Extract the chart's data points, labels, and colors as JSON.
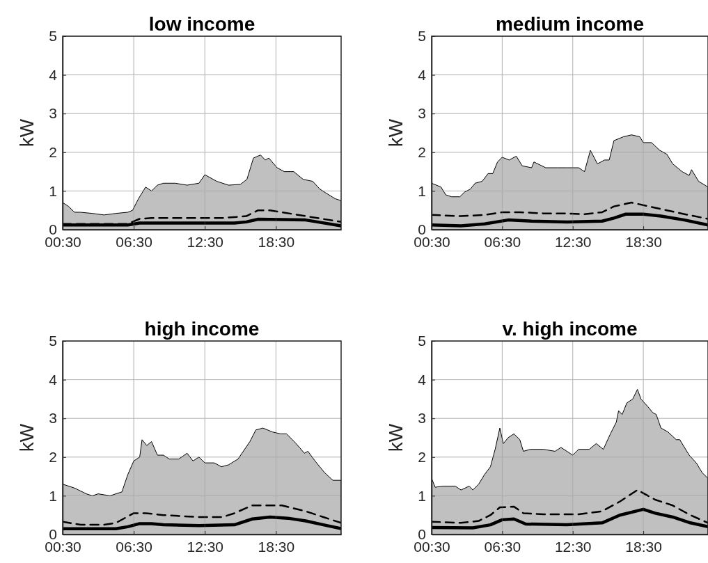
{
  "chart_data": [
    {
      "type": "area",
      "title": "low income",
      "ylabel": "kW",
      "xlim": [
        0.5,
        24
      ],
      "ylim": [
        0,
        5
      ],
      "yticks": [
        0,
        1,
        2,
        3,
        4,
        5
      ],
      "xticks": [
        {
          "value": 0.5,
          "label": "00:30"
        },
        {
          "value": 6.5,
          "label": "06:30"
        },
        {
          "value": 12.5,
          "label": "12:30"
        },
        {
          "value": 18.5,
          "label": "18:30"
        }
      ],
      "grid": true,
      "series": [
        {
          "color": "#c0c0c0",
          "x": [
            0.5,
            1,
            1.5,
            2,
            3,
            4,
            5,
            6,
            6.4,
            6.9,
            7.5,
            8,
            8.5,
            9,
            10,
            11,
            12,
            12.5,
            13.5,
            14.5,
            15.5,
            16.05,
            16.6,
            17.2,
            17.6,
            17.9,
            18.6,
            19.2,
            20,
            20.8,
            21.6,
            22.2,
            22.7,
            23.5,
            24
          ],
          "values": [
            0.7,
            0.6,
            0.45,
            0.45,
            0.42,
            0.38,
            0.42,
            0.45,
            0.5,
            0.8,
            1.1,
            1.0,
            1.15,
            1.2,
            1.2,
            1.15,
            1.2,
            1.42,
            1.25,
            1.15,
            1.17,
            1.3,
            1.85,
            1.93,
            1.8,
            1.85,
            1.6,
            1.5,
            1.5,
            1.3,
            1.25,
            1.05,
            0.95,
            0.8,
            0.75
          ]
        },
        {
          "type": "line",
          "color": "#000000",
          "line_style": "dashed",
          "x": [
            0.5,
            6,
            7,
            8,
            10,
            12,
            14,
            16,
            17,
            18,
            19,
            20,
            22,
            24
          ],
          "values": [
            0.15,
            0.15,
            0.28,
            0.3,
            0.3,
            0.3,
            0.3,
            0.35,
            0.5,
            0.5,
            0.45,
            0.4,
            0.3,
            0.2
          ]
        },
        {
          "type": "line",
          "color": "#000000",
          "line_style": "solid",
          "x": [
            0.5,
            6,
            7,
            10,
            15,
            16,
            17,
            19,
            21,
            22,
            24
          ],
          "values": [
            0.12,
            0.12,
            0.17,
            0.17,
            0.17,
            0.2,
            0.27,
            0.26,
            0.25,
            0.2,
            0.1
          ]
        }
      ]
    },
    {
      "type": "area",
      "title": "medium income",
      "ylabel": "kW",
      "xlim": [
        0.5,
        24
      ],
      "ylim": [
        0,
        5
      ],
      "yticks": [
        0,
        1,
        2,
        3,
        4,
        5
      ],
      "xticks": [
        {
          "value": 0.5,
          "label": "00:30"
        },
        {
          "value": 6.5,
          "label": "06:30"
        },
        {
          "value": 12.5,
          "label": "12:30"
        },
        {
          "value": 18.5,
          "label": "18:30"
        }
      ],
      "grid": true,
      "series": [
        {
          "color": "#c0c0c0",
          "x": [
            0.5,
            1.3,
            1.7,
            2.2,
            2.9,
            3.3,
            3.8,
            4.2,
            4.8,
            5.3,
            5.7,
            6.1,
            6.5,
            7.1,
            7.7,
            8.2,
            9.0,
            9.2,
            10.2,
            11.2,
            12.0,
            13.0,
            13.5,
            14.0,
            14.6,
            15.2,
            15.6,
            16.0,
            16.8,
            17.5,
            18.2,
            18.5,
            19.2,
            19.9,
            20.5,
            21.0,
            21.8,
            22.4,
            22.6,
            23.2,
            24
          ],
          "values": [
            1.2,
            1.1,
            0.9,
            0.85,
            0.85,
            0.97,
            1.05,
            1.2,
            1.25,
            1.45,
            1.45,
            1.75,
            1.87,
            1.8,
            1.9,
            1.65,
            1.6,
            1.75,
            1.6,
            1.6,
            1.6,
            1.6,
            1.5,
            2.05,
            1.7,
            1.8,
            1.8,
            2.3,
            2.4,
            2.45,
            2.4,
            2.25,
            2.25,
            2.05,
            1.95,
            1.7,
            1.5,
            1.4,
            1.55,
            1.25,
            1.1
          ]
        },
        {
          "type": "line",
          "color": "#000000",
          "line_style": "dashed",
          "x": [
            0.5,
            3,
            5,
            6.5,
            8,
            10,
            12,
            13.5,
            15,
            16,
            17.5,
            19,
            20.5,
            22,
            24
          ],
          "values": [
            0.38,
            0.35,
            0.38,
            0.45,
            0.45,
            0.42,
            0.42,
            0.4,
            0.45,
            0.6,
            0.7,
            0.6,
            0.5,
            0.4,
            0.28
          ]
        },
        {
          "type": "line",
          "color": "#000000",
          "line_style": "solid",
          "x": [
            0.5,
            3,
            5,
            7,
            9,
            12,
            15,
            16,
            17,
            18.5,
            20,
            22,
            24
          ],
          "values": [
            0.12,
            0.1,
            0.15,
            0.25,
            0.22,
            0.2,
            0.22,
            0.3,
            0.4,
            0.4,
            0.35,
            0.25,
            0.12
          ]
        }
      ]
    },
    {
      "type": "area",
      "title": "high income",
      "ylabel": "kW",
      "xlim": [
        0.5,
        24
      ],
      "ylim": [
        0,
        5
      ],
      "yticks": [
        0,
        1,
        2,
        3,
        4,
        5
      ],
      "xticks": [
        {
          "value": 0.5,
          "label": "00:30"
        },
        {
          "value": 6.5,
          "label": "06:30"
        },
        {
          "value": 12.5,
          "label": "12:30"
        },
        {
          "value": 18.5,
          "label": "18:30"
        }
      ],
      "grid": true,
      "series": [
        {
          "color": "#c0c0c0",
          "x": [
            0.5,
            1.5,
            2.5,
            3.0,
            3.5,
            4.5,
            5.5,
            6.0,
            6.5,
            7.0,
            7.2,
            7.6,
            8.0,
            8.5,
            9.0,
            9.5,
            10.3,
            11.0,
            11.5,
            12.0,
            12.5,
            13.3,
            13.9,
            14.5,
            15.3,
            16.3,
            16.8,
            17.4,
            18.2,
            18.9,
            19.4,
            20.2,
            20.9,
            21.2,
            21.8,
            22.6,
            23.3,
            24
          ],
          "values": [
            1.3,
            1.2,
            1.05,
            1.0,
            1.05,
            1.0,
            1.1,
            1.55,
            1.9,
            2.0,
            2.45,
            2.3,
            2.4,
            2.05,
            2.05,
            1.95,
            1.95,
            2.1,
            1.9,
            2.0,
            1.85,
            1.85,
            1.75,
            1.8,
            1.95,
            2.4,
            2.7,
            2.75,
            2.65,
            2.6,
            2.6,
            2.35,
            2.1,
            2.15,
            1.9,
            1.6,
            1.4,
            1.4
          ]
        },
        {
          "type": "line",
          "color": "#000000",
          "line_style": "dashed",
          "x": [
            0.5,
            2,
            4,
            5,
            6.5,
            7.5,
            9,
            12,
            14,
            15,
            16.5,
            18,
            19,
            21,
            22.5,
            24
          ],
          "values": [
            0.33,
            0.25,
            0.25,
            0.3,
            0.55,
            0.55,
            0.5,
            0.45,
            0.45,
            0.55,
            0.75,
            0.75,
            0.75,
            0.6,
            0.45,
            0.3
          ]
        },
        {
          "type": "line",
          "color": "#000000",
          "line_style": "solid",
          "x": [
            0.5,
            5,
            6,
            7,
            8,
            9,
            12,
            15,
            16.5,
            18,
            19.5,
            21,
            22.5,
            24
          ],
          "values": [
            0.15,
            0.15,
            0.2,
            0.28,
            0.28,
            0.25,
            0.23,
            0.25,
            0.4,
            0.45,
            0.42,
            0.35,
            0.25,
            0.15
          ]
        }
      ]
    },
    {
      "type": "area",
      "title": "v. high income",
      "ylabel": "kW",
      "xlim": [
        0.5,
        24
      ],
      "ylim": [
        0,
        5
      ],
      "yticks": [
        0,
        1,
        2,
        3,
        4,
        5
      ],
      "xticks": [
        {
          "value": 0.5,
          "label": "00:30"
        },
        {
          "value": 6.5,
          "label": "06:30"
        },
        {
          "value": 12.5,
          "label": "12:30"
        },
        {
          "value": 18.5,
          "label": "18:30"
        }
      ],
      "grid": true,
      "series": [
        {
          "color": "#c0c0c0",
          "x": [
            0.5,
            0.8,
            1.5,
            2.5,
            3.0,
            3.7,
            4.0,
            4.5,
            5.0,
            5.5,
            5.9,
            6.3,
            6.6,
            7.0,
            7.5,
            8.0,
            8.3,
            8.9,
            10,
            11,
            11.5,
            12.5,
            13.0,
            13.9,
            14.5,
            15.1,
            15.7,
            16.2,
            16.4,
            16.7,
            17.1,
            17.6,
            18.0,
            18.3,
            18.9,
            19.3,
            19.6,
            20.0,
            20.6,
            21.3,
            21.6,
            22.4,
            23.0,
            23.5,
            24
          ],
          "values": [
            1.45,
            1.22,
            1.25,
            1.25,
            1.15,
            1.25,
            1.15,
            1.3,
            1.55,
            1.75,
            2.2,
            2.75,
            2.35,
            2.5,
            2.6,
            2.45,
            2.15,
            2.2,
            2.2,
            2.15,
            2.25,
            2.05,
            2.2,
            2.2,
            2.35,
            2.2,
            2.6,
            2.9,
            3.2,
            3.1,
            3.4,
            3.5,
            3.75,
            3.5,
            3.3,
            3.15,
            3.1,
            2.75,
            2.65,
            2.45,
            2.45,
            2.05,
            1.85,
            1.6,
            1.45
          ]
        },
        {
          "type": "line",
          "color": "#000000",
          "line_style": "dashed",
          "x": [
            0.5,
            3,
            4.5,
            5.5,
            6.3,
            7.5,
            8.3,
            10,
            13,
            15,
            16.5,
            18,
            19.5,
            21,
            22.5,
            24
          ],
          "values": [
            0.33,
            0.3,
            0.35,
            0.5,
            0.7,
            0.72,
            0.55,
            0.52,
            0.52,
            0.6,
            0.85,
            1.15,
            0.9,
            0.75,
            0.5,
            0.3
          ]
        },
        {
          "type": "line",
          "color": "#000000",
          "line_style": "solid",
          "x": [
            0.5,
            4,
            5.5,
            6.5,
            7.5,
            8.5,
            12,
            15,
            16.5,
            18.5,
            19.5,
            21,
            22.5,
            24
          ],
          "values": [
            0.18,
            0.17,
            0.25,
            0.38,
            0.4,
            0.27,
            0.25,
            0.3,
            0.5,
            0.65,
            0.55,
            0.45,
            0.3,
            0.2
          ]
        }
      ]
    }
  ]
}
